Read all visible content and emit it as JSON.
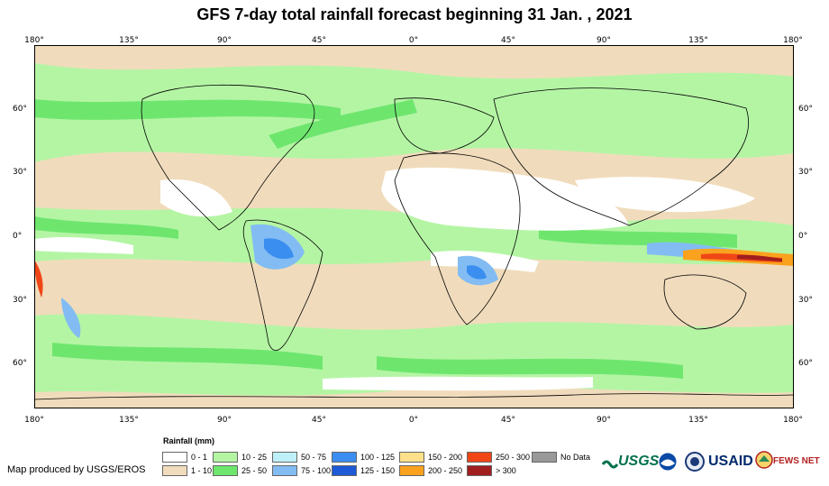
{
  "title": "GFS 7-day total rainfall forecast beginning 31 Jan. , 2021",
  "lon_ticks": [
    "180°",
    "135°",
    "90°",
    "45°",
    "0°",
    "45°",
    "90°",
    "135°",
    "180°"
  ],
  "lat_ticks": [
    "60°",
    "30°",
    "0°",
    "30°",
    "60°"
  ],
  "legend": {
    "title": "Rainfall (mm)",
    "items": [
      {
        "label": "0 - 1",
        "color": "#ffffff"
      },
      {
        "label": "1 - 10",
        "color": "#f0dcbc"
      },
      {
        "label": "10 - 25",
        "color": "#b4f5a4"
      },
      {
        "label": "25 - 50",
        "color": "#6ee66e"
      },
      {
        "label": "50 - 75",
        "color": "#bdf0f8"
      },
      {
        "label": "75 - 100",
        "color": "#82bcf2"
      },
      {
        "label": "100 - 125",
        "color": "#3a8ef0"
      },
      {
        "label": "125 - 150",
        "color": "#1e5ad6"
      },
      {
        "label": "150 - 200",
        "color": "#fce08a"
      },
      {
        "label": "200 - 250",
        "color": "#faa21e"
      },
      {
        "label": "250 - 300",
        "color": "#f04616"
      },
      {
        "label": "> 300",
        "color": "#a01e1e"
      },
      {
        "label": "No Data",
        "color": "#999999"
      }
    ]
  },
  "credit": "Map produced by USGS/EROS",
  "logos": {
    "usgs": "USGS",
    "usaid": "USAID",
    "fews": "FEWS NET"
  },
  "icons": [
    "usgs-logo-icon",
    "noaa-logo-icon",
    "dept-interior-seal-icon",
    "usaid-logo-icon",
    "fews-net-logo-icon"
  ]
}
